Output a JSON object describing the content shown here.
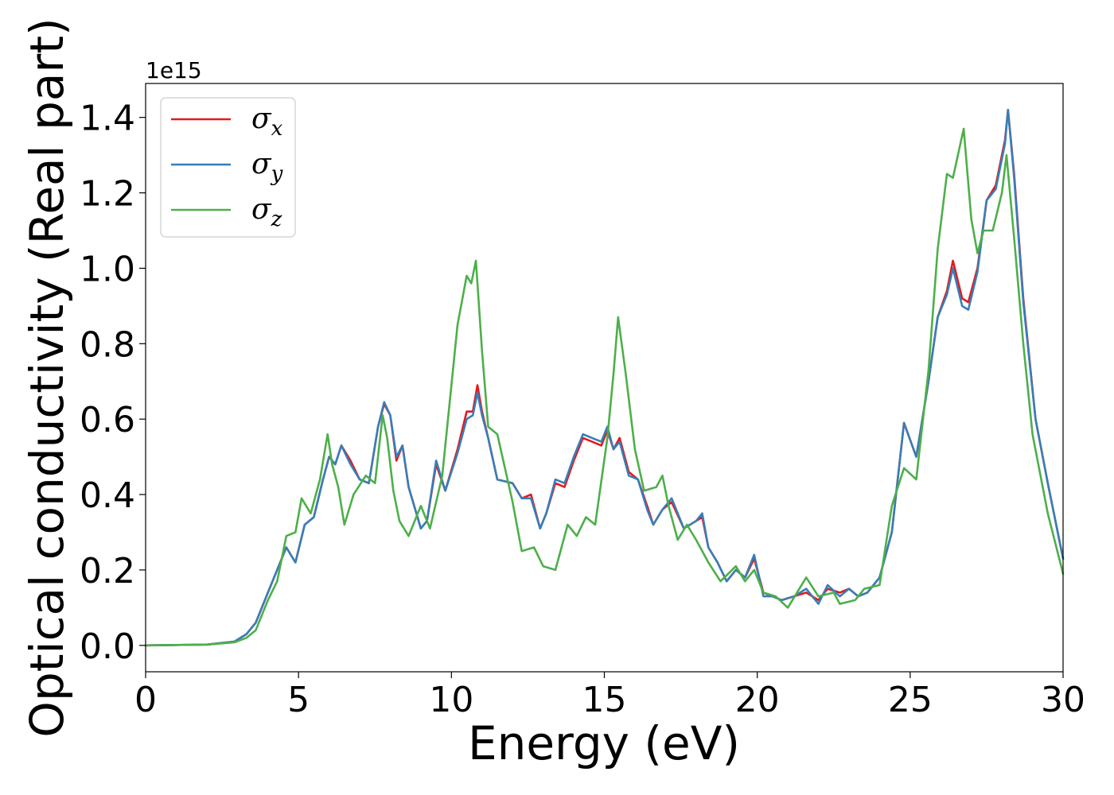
{
  "chart_data": {
    "type": "line",
    "title": "",
    "xlabel": "Energy (eV)",
    "ylabel": "Optical conductivity (Real part)",
    "y_offset_text": "1e15",
    "xlim": [
      0,
      30
    ],
    "ylim": [
      -0.07,
      1.49
    ],
    "x_ticks": [
      0,
      5,
      10,
      15,
      20,
      25,
      30
    ],
    "x_tick_labels": [
      "0",
      "5",
      "10",
      "15",
      "20",
      "25",
      "30"
    ],
    "y_ticks": [
      0.0,
      0.2,
      0.4,
      0.6,
      0.8,
      1.0,
      1.2,
      1.4
    ],
    "y_tick_labels": [
      "0.0",
      "0.2",
      "0.4",
      "0.6",
      "0.8",
      "1.0",
      "1.2",
      "1.4"
    ],
    "grid": false,
    "legend_position": "top-left",
    "series": [
      {
        "name": "σx",
        "symbol": "σ",
        "subscript": "x",
        "color": "#e41a1c",
        "points": [
          [
            0,
            0
          ],
          [
            2,
            0.002
          ],
          [
            2.9,
            0.01
          ],
          [
            3.3,
            0.03
          ],
          [
            3.6,
            0.06
          ],
          [
            4,
            0.14
          ],
          [
            4.3,
            0.2
          ],
          [
            4.6,
            0.26
          ],
          [
            4.9,
            0.22
          ],
          [
            5.2,
            0.32
          ],
          [
            5.5,
            0.34
          ],
          [
            5.8,
            0.44
          ],
          [
            6,
            0.5
          ],
          [
            6.2,
            0.48
          ],
          [
            6.4,
            0.53
          ],
          [
            6.7,
            0.49
          ],
          [
            7,
            0.44
          ],
          [
            7.3,
            0.43
          ],
          [
            7.6,
            0.58
          ],
          [
            7.8,
            0.64
          ],
          [
            8,
            0.61
          ],
          [
            8.2,
            0.49
          ],
          [
            8.4,
            0.53
          ],
          [
            8.6,
            0.42
          ],
          [
            9,
            0.31
          ],
          [
            9.2,
            0.33
          ],
          [
            9.5,
            0.48
          ],
          [
            9.8,
            0.41
          ],
          [
            10.2,
            0.52
          ],
          [
            10.5,
            0.62
          ],
          [
            10.7,
            0.62
          ],
          [
            10.85,
            0.69
          ],
          [
            11,
            0.62
          ],
          [
            11.2,
            0.55
          ],
          [
            11.5,
            0.44
          ],
          [
            12,
            0.43
          ],
          [
            12.3,
            0.39
          ],
          [
            12.6,
            0.4
          ],
          [
            12.9,
            0.31
          ],
          [
            13.1,
            0.35
          ],
          [
            13.4,
            0.43
          ],
          [
            13.7,
            0.42
          ],
          [
            14,
            0.49
          ],
          [
            14.3,
            0.55
          ],
          [
            14.6,
            0.54
          ],
          [
            14.9,
            0.53
          ],
          [
            15.1,
            0.57
          ],
          [
            15.3,
            0.52
          ],
          [
            15.5,
            0.55
          ],
          [
            15.8,
            0.46
          ],
          [
            16.1,
            0.44
          ],
          [
            16.4,
            0.37
          ],
          [
            16.6,
            0.32
          ],
          [
            16.9,
            0.36
          ],
          [
            17.2,
            0.38
          ],
          [
            17.6,
            0.31
          ],
          [
            18,
            0.33
          ],
          [
            18.2,
            0.34
          ],
          [
            18.4,
            0.26
          ],
          [
            18.7,
            0.22
          ],
          [
            19,
            0.17
          ],
          [
            19.3,
            0.2
          ],
          [
            19.6,
            0.18
          ],
          [
            19.9,
            0.23
          ],
          [
            20.2,
            0.14
          ],
          [
            20.5,
            0.13
          ],
          [
            20.8,
            0.12
          ],
          [
            21.2,
            0.13
          ],
          [
            21.6,
            0.14
          ],
          [
            22,
            0.12
          ],
          [
            22.3,
            0.15
          ],
          [
            22.7,
            0.14
          ],
          [
            23,
            0.15
          ],
          [
            23.3,
            0.13
          ],
          [
            23.6,
            0.14
          ],
          [
            24,
            0.18
          ],
          [
            24.4,
            0.3
          ],
          [
            24.8,
            0.59
          ],
          [
            25.2,
            0.5
          ],
          [
            25.6,
            0.7
          ],
          [
            25.9,
            0.87
          ],
          [
            26.2,
            0.94
          ],
          [
            26.4,
            1.02
          ],
          [
            26.7,
            0.92
          ],
          [
            26.9,
            0.91
          ],
          [
            27.2,
            1.0
          ],
          [
            27.5,
            1.18
          ],
          [
            27.8,
            1.22
          ],
          [
            28.1,
            1.34
          ],
          [
            28.2,
            1.42
          ],
          [
            28.4,
            1.25
          ],
          [
            28.7,
            0.92
          ],
          [
            29.1,
            0.6
          ],
          [
            29.5,
            0.43
          ],
          [
            30,
            0.23
          ]
        ]
      },
      {
        "name": "σy",
        "symbol": "σ",
        "subscript": "y",
        "color": "#377eb8",
        "points": [
          [
            0,
            0
          ],
          [
            2,
            0.002
          ],
          [
            2.9,
            0.01
          ],
          [
            3.3,
            0.03
          ],
          [
            3.6,
            0.06
          ],
          [
            4,
            0.14
          ],
          [
            4.3,
            0.2
          ],
          [
            4.6,
            0.26
          ],
          [
            4.9,
            0.22
          ],
          [
            5.2,
            0.32
          ],
          [
            5.5,
            0.34
          ],
          [
            5.8,
            0.44
          ],
          [
            6,
            0.5
          ],
          [
            6.2,
            0.48
          ],
          [
            6.4,
            0.53
          ],
          [
            6.7,
            0.48
          ],
          [
            7,
            0.44
          ],
          [
            7.3,
            0.43
          ],
          [
            7.6,
            0.58
          ],
          [
            7.8,
            0.645
          ],
          [
            8,
            0.61
          ],
          [
            8.2,
            0.5
          ],
          [
            8.4,
            0.53
          ],
          [
            8.6,
            0.42
          ],
          [
            9,
            0.31
          ],
          [
            9.2,
            0.33
          ],
          [
            9.5,
            0.49
          ],
          [
            9.8,
            0.41
          ],
          [
            10.2,
            0.51
          ],
          [
            10.5,
            0.6
          ],
          [
            10.7,
            0.61
          ],
          [
            10.85,
            0.67
          ],
          [
            11,
            0.61
          ],
          [
            11.2,
            0.55
          ],
          [
            11.5,
            0.44
          ],
          [
            12,
            0.43
          ],
          [
            12.3,
            0.39
          ],
          [
            12.6,
            0.39
          ],
          [
            12.9,
            0.31
          ],
          [
            13.1,
            0.35
          ],
          [
            13.4,
            0.44
          ],
          [
            13.7,
            0.43
          ],
          [
            14,
            0.5
          ],
          [
            14.3,
            0.56
          ],
          [
            14.6,
            0.55
          ],
          [
            14.9,
            0.54
          ],
          [
            15.1,
            0.58
          ],
          [
            15.3,
            0.52
          ],
          [
            15.5,
            0.54
          ],
          [
            15.8,
            0.45
          ],
          [
            16.1,
            0.44
          ],
          [
            16.4,
            0.36
          ],
          [
            16.6,
            0.32
          ],
          [
            16.9,
            0.36
          ],
          [
            17.2,
            0.39
          ],
          [
            17.6,
            0.31
          ],
          [
            18,
            0.33
          ],
          [
            18.2,
            0.35
          ],
          [
            18.4,
            0.26
          ],
          [
            18.7,
            0.22
          ],
          [
            19,
            0.17
          ],
          [
            19.3,
            0.2
          ],
          [
            19.6,
            0.18
          ],
          [
            19.9,
            0.24
          ],
          [
            20.2,
            0.13
          ],
          [
            20.5,
            0.13
          ],
          [
            20.8,
            0.12
          ],
          [
            21.2,
            0.13
          ],
          [
            21.6,
            0.15
          ],
          [
            22,
            0.11
          ],
          [
            22.3,
            0.16
          ],
          [
            22.7,
            0.13
          ],
          [
            23,
            0.15
          ],
          [
            23.3,
            0.13
          ],
          [
            23.6,
            0.14
          ],
          [
            24,
            0.18
          ],
          [
            24.4,
            0.3
          ],
          [
            24.8,
            0.59
          ],
          [
            25.2,
            0.5
          ],
          [
            25.6,
            0.7
          ],
          [
            25.9,
            0.87
          ],
          [
            26.2,
            0.93
          ],
          [
            26.4,
            1.0
          ],
          [
            26.7,
            0.9
          ],
          [
            26.9,
            0.89
          ],
          [
            27.2,
            0.99
          ],
          [
            27.5,
            1.18
          ],
          [
            27.8,
            1.21
          ],
          [
            28.1,
            1.33
          ],
          [
            28.2,
            1.42
          ],
          [
            28.4,
            1.24
          ],
          [
            28.7,
            0.91
          ],
          [
            29.1,
            0.6
          ],
          [
            29.5,
            0.43
          ],
          [
            30,
            0.23
          ]
        ]
      },
      {
        "name": "σz",
        "symbol": "σ",
        "subscript": "z",
        "color": "#4daf4a",
        "points": [
          [
            0,
            0
          ],
          [
            2,
            0.002
          ],
          [
            2.9,
            0.008
          ],
          [
            3.3,
            0.02
          ],
          [
            3.6,
            0.04
          ],
          [
            4,
            0.12
          ],
          [
            4.3,
            0.17
          ],
          [
            4.6,
            0.29
          ],
          [
            4.9,
            0.3
          ],
          [
            5.1,
            0.39
          ],
          [
            5.4,
            0.35
          ],
          [
            5.7,
            0.44
          ],
          [
            5.95,
            0.56
          ],
          [
            6.1,
            0.48
          ],
          [
            6.3,
            0.42
          ],
          [
            6.5,
            0.32
          ],
          [
            6.8,
            0.4
          ],
          [
            7.2,
            0.45
          ],
          [
            7.5,
            0.43
          ],
          [
            7.75,
            0.61
          ],
          [
            7.9,
            0.55
          ],
          [
            8.1,
            0.41
          ],
          [
            8.3,
            0.33
          ],
          [
            8.6,
            0.29
          ],
          [
            9,
            0.37
          ],
          [
            9.3,
            0.31
          ],
          [
            9.7,
            0.45
          ],
          [
            10.2,
            0.85
          ],
          [
            10.5,
            0.98
          ],
          [
            10.65,
            0.96
          ],
          [
            10.8,
            1.02
          ],
          [
            11,
            0.78
          ],
          [
            11.2,
            0.58
          ],
          [
            11.5,
            0.56
          ],
          [
            12,
            0.38
          ],
          [
            12.3,
            0.25
          ],
          [
            12.7,
            0.26
          ],
          [
            13,
            0.21
          ],
          [
            13.4,
            0.2
          ],
          [
            13.8,
            0.32
          ],
          [
            14.1,
            0.29
          ],
          [
            14.4,
            0.34
          ],
          [
            14.7,
            0.32
          ],
          [
            15.1,
            0.55
          ],
          [
            15.3,
            0.72
          ],
          [
            15.45,
            0.87
          ],
          [
            15.7,
            0.72
          ],
          [
            16,
            0.52
          ],
          [
            16.3,
            0.41
          ],
          [
            16.7,
            0.42
          ],
          [
            16.9,
            0.45
          ],
          [
            17.1,
            0.37
          ],
          [
            17.4,
            0.28
          ],
          [
            17.7,
            0.32
          ],
          [
            18,
            0.28
          ],
          [
            18.4,
            0.22
          ],
          [
            18.8,
            0.17
          ],
          [
            19.3,
            0.21
          ],
          [
            19.6,
            0.17
          ],
          [
            19.9,
            0.2
          ],
          [
            20.2,
            0.14
          ],
          [
            20.6,
            0.13
          ],
          [
            21,
            0.1
          ],
          [
            21.3,
            0.14
          ],
          [
            21.6,
            0.18
          ],
          [
            22,
            0.13
          ],
          [
            22.5,
            0.14
          ],
          [
            22.7,
            0.11
          ],
          [
            23.2,
            0.12
          ],
          [
            23.5,
            0.15
          ],
          [
            24,
            0.16
          ],
          [
            24.4,
            0.37
          ],
          [
            24.8,
            0.47
          ],
          [
            25.2,
            0.44
          ],
          [
            25.6,
            0.73
          ],
          [
            25.9,
            1.05
          ],
          [
            26.2,
            1.25
          ],
          [
            26.4,
            1.24
          ],
          [
            26.75,
            1.37
          ],
          [
            27,
            1.13
          ],
          [
            27.2,
            1.04
          ],
          [
            27.4,
            1.1
          ],
          [
            27.7,
            1.1
          ],
          [
            28,
            1.2
          ],
          [
            28.15,
            1.3
          ],
          [
            28.4,
            1.08
          ],
          [
            28.7,
            0.8
          ],
          [
            29,
            0.56
          ],
          [
            29.5,
            0.35
          ],
          [
            30,
            0.19
          ]
        ]
      }
    ]
  }
}
